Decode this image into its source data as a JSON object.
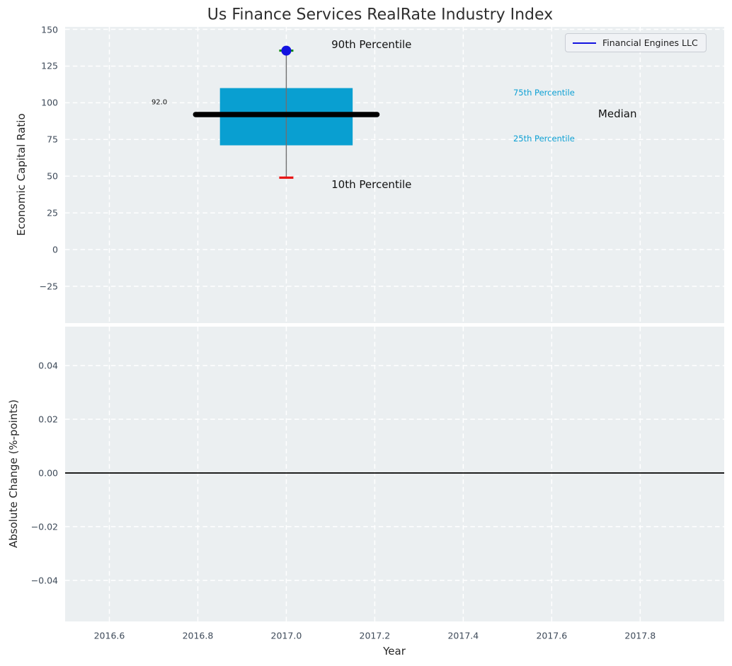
{
  "figure": {
    "title": "Us Finance Services RealRate Industry Index"
  },
  "legend": {
    "label": "Financial Engines LLC"
  },
  "colors": {
    "axes_background": "#ebeff1",
    "grid": "#ffffff",
    "box_fill": "#099fd1",
    "median_line": "#000000",
    "whisker": "#707070",
    "cap_90th": "#0a8a0a",
    "cap_10th": "#e81212",
    "marker_blue": "#1212e0",
    "percentile_label": "#0da0d4",
    "tick_label": "#3e4a59",
    "zero_line": "#000000"
  },
  "chart_data": [
    {
      "type": "box",
      "subplot": "economic-capital-ratio",
      "ylabel": "Economic Capital Ratio",
      "ylim": [
        -50.1,
        151.7
      ],
      "xlim": [
        2016.5,
        2017.99
      ],
      "grid": true,
      "ytick_values": [
        150,
        125,
        100,
        75,
        50,
        25,
        0,
        -25
      ],
      "ytick_labels": [
        "150",
        "125",
        "100",
        "75",
        "50",
        "25",
        "0",
        "−25"
      ],
      "xtick_values": [
        2016.6,
        2016.8,
        2017.0,
        2017.2,
        2017.4,
        2017.6,
        2017.8
      ],
      "xtick_labels": [],
      "box": {
        "x": 2017.0,
        "p10": 49.0,
        "p25": 71.0,
        "median": 92.0,
        "p75": 110.0,
        "p90": 135.5,
        "box_halfwidth": 0.15,
        "median_halfwidth": 0.205,
        "cap_halfwidth": 0.016
      },
      "series": [
        {
          "name": "Financial Engines LLC",
          "type": "scatter",
          "x": [
            2017.0
          ],
          "y": [
            135.5
          ],
          "color": "#1212e0"
        }
      ],
      "annotations": [
        {
          "id": "p90-label",
          "text": "90th Percentile",
          "x": 2017.102,
          "y": 139.5,
          "anchor": "start",
          "size": 15,
          "color": "#111111"
        },
        {
          "id": "p10-label",
          "text": "10th Percentile",
          "x": 2017.102,
          "y": 44.1,
          "anchor": "start",
          "size": 15,
          "color": "#111111"
        },
        {
          "id": "p75-label",
          "text": "75th Percentile",
          "x": 2017.513,
          "y": 106.7,
          "anchor": "start",
          "size": 11.5,
          "color": "#0da0d4"
        },
        {
          "id": "p25-label",
          "text": "25th Percentile",
          "x": 2017.513,
          "y": 75.4,
          "anchor": "start",
          "size": 11.5,
          "color": "#0da0d4"
        },
        {
          "id": "median-label",
          "text": "Median",
          "x": 2017.705,
          "y": 92.3,
          "anchor": "start",
          "size": 15,
          "color": "#111111"
        },
        {
          "id": "median-value",
          "text": "92.0",
          "x": 2016.713,
          "y": 100.0,
          "anchor": "middle",
          "size": 10,
          "color": "#111111"
        }
      ]
    },
    {
      "type": "line",
      "subplot": "absolute-change",
      "ylabel": "Absolute Change (%-points)",
      "xlabel": "Year",
      "ylim": [
        -0.0553,
        0.0545
      ],
      "xlim": [
        2016.5,
        2017.99
      ],
      "grid": true,
      "ytick_values": [
        0.04,
        0.02,
        0.0,
        -0.02,
        -0.04
      ],
      "ytick_labels": [
        "0.04",
        "0.02",
        "0.00",
        "−0.02",
        "−0.04"
      ],
      "xtick_values": [
        2016.6,
        2016.8,
        2017.0,
        2017.2,
        2017.4,
        2017.6,
        2017.8
      ],
      "xtick_labels": [
        "2016.6",
        "2016.8",
        "2017.0",
        "2017.2",
        "2017.4",
        "2017.6",
        "2017.8"
      ],
      "zero_line": 0.0,
      "series": []
    }
  ]
}
